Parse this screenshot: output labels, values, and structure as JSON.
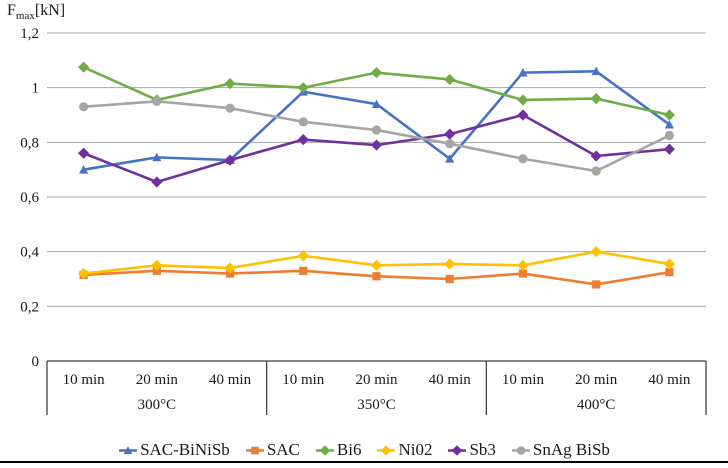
{
  "page": {
    "background": "#FFFFFF",
    "bottom_rule_color": "#000000"
  },
  "chart_data": {
    "type": "line",
    "title": "",
    "ylabel": {
      "base": "F",
      "sub": "max",
      "unit": "[kN]"
    },
    "xlabel": "",
    "ylim": [
      0,
      1.2
    ],
    "ytick_values": [
      0,
      0.2,
      0.4,
      0.6,
      0.8,
      1,
      1.2
    ],
    "ytick_labels": [
      "0",
      "0,2",
      "0,4",
      "0,6",
      "0,8",
      "1",
      "1,2"
    ],
    "grid": true,
    "legend_position": "bottom",
    "groups": [
      {
        "label": "300°C",
        "categories": [
          "10 min",
          "20 min",
          "40 min"
        ]
      },
      {
        "label": "350°C",
        "categories": [
          "10 min",
          "20 min",
          "40 min"
        ]
      },
      {
        "label": "400°C",
        "categories": [
          "10 min",
          "20 min",
          "40 min"
        ]
      }
    ],
    "series": [
      {
        "name": "SAC-BiNiSb",
        "color": "#4472C4",
        "marker": "triangle",
        "values": [
          0.7,
          0.745,
          0.735,
          0.985,
          0.94,
          0.74,
          1.055,
          1.06,
          0.865
        ]
      },
      {
        "name": "SAC",
        "color": "#ED7D31",
        "marker": "square",
        "values": [
          0.315,
          0.33,
          0.32,
          0.33,
          0.31,
          0.3,
          0.32,
          0.28,
          0.325
        ]
      },
      {
        "name": "Bi6",
        "color": "#70AD47",
        "marker": "diamond",
        "values": [
          1.075,
          0.955,
          1.015,
          1.0,
          1.055,
          1.03,
          0.955,
          0.96,
          0.9
        ]
      },
      {
        "name": "Ni02",
        "color": "#FFC000",
        "marker": "diamond",
        "values": [
          0.32,
          0.35,
          0.34,
          0.385,
          0.35,
          0.355,
          0.35,
          0.4,
          0.355
        ]
      },
      {
        "name": "Sb3",
        "color": "#7030A0",
        "marker": "diamond",
        "values": [
          0.76,
          0.655,
          0.735,
          0.81,
          0.79,
          0.83,
          0.9,
          0.75,
          0.775
        ]
      },
      {
        "name": "SnAg BiSb",
        "color": "#A5A5A5",
        "marker": "circle",
        "values": [
          0.93,
          0.95,
          0.925,
          0.875,
          0.845,
          0.795,
          0.74,
          0.695,
          0.825
        ]
      }
    ],
    "gridline_color": "#A6A6A6",
    "axis_color": "#404040",
    "text_color": "#1a1a1a"
  }
}
